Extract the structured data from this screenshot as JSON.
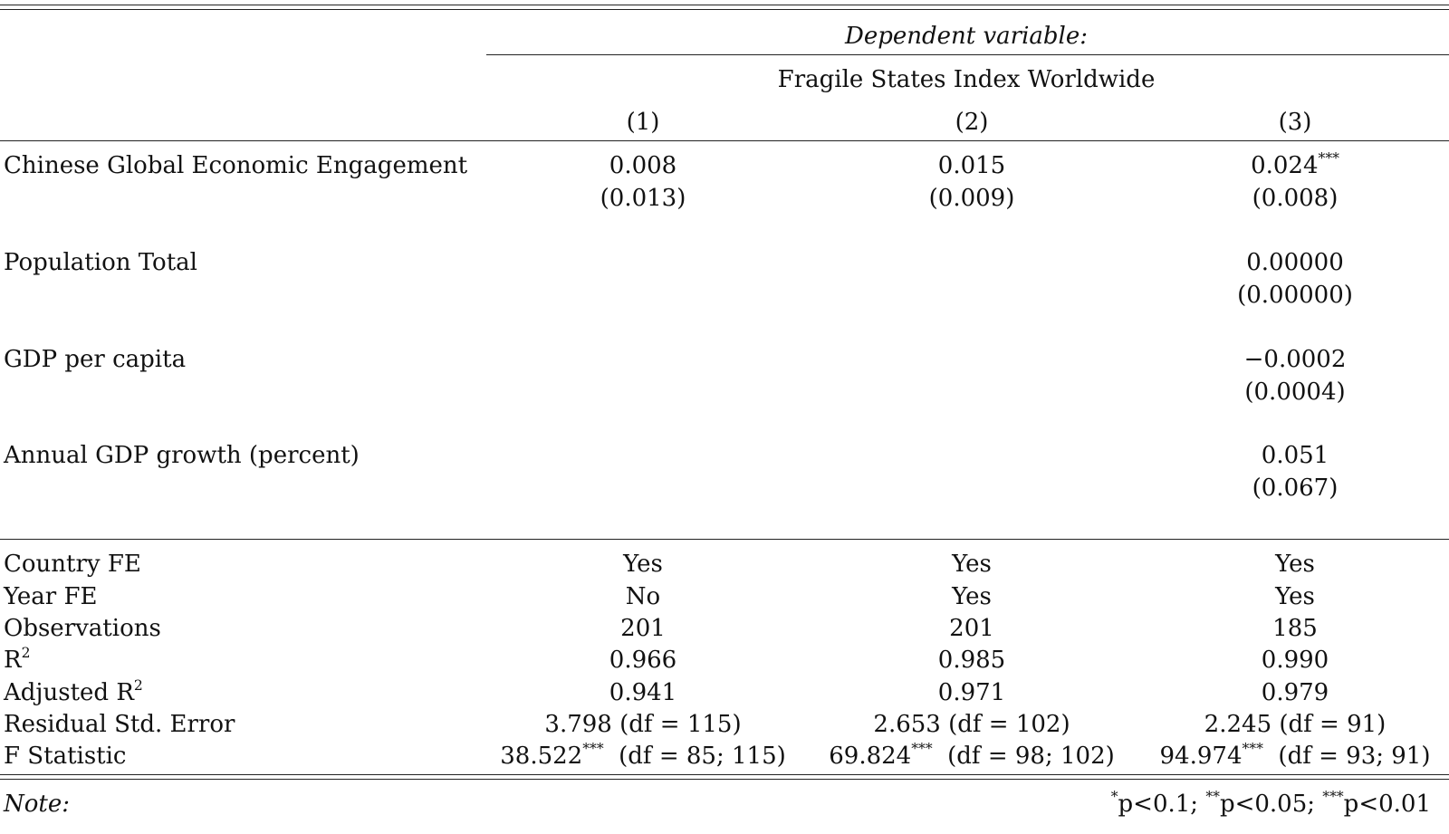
{
  "header": {
    "dependent_variable_label": "Dependent variable:",
    "dependent_variable": "Fragile States Index Worldwide",
    "columns": [
      "(1)",
      "(2)",
      "(3)"
    ]
  },
  "coefficients": [
    {
      "label": "Chinese Global Economic Engagement",
      "estimates": [
        "0.008",
        "0.015",
        "0.024"
      ],
      "stars": [
        "",
        "",
        "***"
      ],
      "std_errors": [
        "(0.013)",
        "(0.009)",
        "(0.008)"
      ]
    },
    {
      "label": "Population Total",
      "estimates": [
        "",
        "",
        "0.00000"
      ],
      "stars": [
        "",
        "",
        ""
      ],
      "std_errors": [
        "",
        "",
        "(0.00000)"
      ]
    },
    {
      "label": "GDP per capita",
      "estimates": [
        "",
        "",
        "−0.0002"
      ],
      "stars": [
        "",
        "",
        ""
      ],
      "std_errors": [
        "",
        "",
        "(0.0004)"
      ]
    },
    {
      "label": "Annual GDP growth (percent)",
      "estimates": [
        "",
        "",
        "0.051"
      ],
      "stars": [
        "",
        "",
        ""
      ],
      "std_errors": [
        "",
        "",
        "(0.067)"
      ]
    }
  ],
  "stats": {
    "country_fe": {
      "label": "Country FE",
      "values": [
        "Yes",
        "Yes",
        "Yes"
      ]
    },
    "year_fe": {
      "label": "Year FE",
      "values": [
        "No",
        "Yes",
        "Yes"
      ]
    },
    "observations": {
      "label": "Observations",
      "values": [
        "201",
        "201",
        "185"
      ]
    },
    "r2": {
      "label_base": "R",
      "label_sup": "2",
      "values": [
        "0.966",
        "0.985",
        "0.990"
      ]
    },
    "adj_r2": {
      "label_base": "Adjusted R",
      "label_sup": "2",
      "values": [
        "0.941",
        "0.971",
        "0.979"
      ]
    },
    "rse": {
      "label": "Residual Std. Error",
      "values": [
        "3.798 (df = 115)",
        "2.653 (df = 102)",
        "2.245 (df = 91)"
      ]
    },
    "f_stat": {
      "label": "F Statistic",
      "values": [
        "38.522",
        "69.824",
        "94.974"
      ],
      "stars": [
        "***",
        "***",
        "***"
      ],
      "df": [
        "(df = 85; 115)",
        "(df = 98; 102)",
        "(df = 93; 91)"
      ]
    }
  },
  "note": {
    "label": "Note:",
    "s1": "*",
    "t1": "p<0.1; ",
    "s2": "**",
    "t2": "p<0.05; ",
    "s3": "***",
    "t3": "p<0.01"
  }
}
